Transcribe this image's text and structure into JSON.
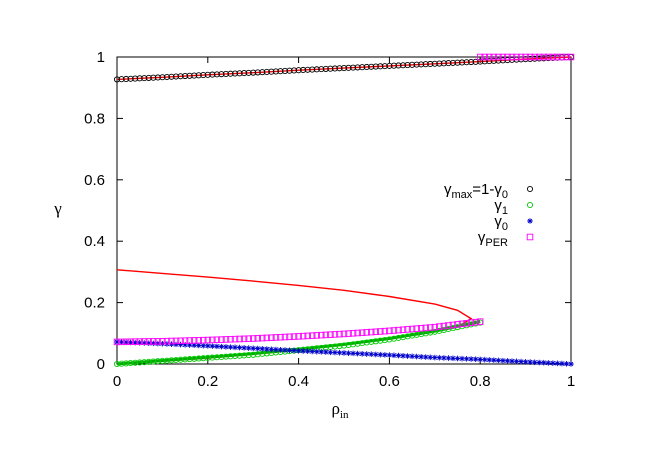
{
  "chart_data": {
    "type": "scatter",
    "title": "",
    "xlabel": "ρ",
    "xlabel_sub": "in",
    "ylabel": "γ",
    "xlim": [
      0,
      1
    ],
    "ylim": [
      0,
      1
    ],
    "xticks": [
      0,
      0.2,
      0.4,
      0.6,
      0.8,
      1
    ],
    "yticks": [
      0,
      0.2,
      0.4,
      0.6,
      0.8,
      1
    ],
    "xtick_labels": [
      "0",
      "0.2",
      "0.4",
      "0.6",
      "0.8",
      "1"
    ],
    "ytick_labels": [
      "0",
      "0.2",
      "0.4",
      "0.6",
      "0.8",
      "1"
    ],
    "grid": false,
    "legend_position": "right-middle",
    "legend": [
      {
        "main": "γ",
        "sub": "max",
        "rest": "=1-γ",
        "sub2": "0",
        "marker": "circle",
        "color": "#000000"
      },
      {
        "main": "γ",
        "sub": "1",
        "rest": "",
        "sub2": "",
        "marker": "circle",
        "color": "#00cc00"
      },
      {
        "main": "γ",
        "sub": "0",
        "rest": "",
        "sub2": "",
        "marker": "star",
        "color": "#0000cc"
      },
      {
        "main": "γ",
        "sub": "PER",
        "rest": "",
        "sub2": "",
        "marker": "square",
        "color": "#ff00ff"
      }
    ],
    "series": [
      {
        "name": "γmax=1-γ0",
        "kind": "markers",
        "marker": "circle",
        "color": "#000000",
        "x": [
          0,
          0.1,
          0.2,
          0.3,
          0.4,
          0.5,
          0.6,
          0.7,
          0.8,
          0.9,
          1.0
        ],
        "y": [
          0.927,
          0.934,
          0.942,
          0.949,
          0.957,
          0.964,
          0.971,
          0.978,
          0.985,
          0.993,
          1.0
        ]
      },
      {
        "name": "γ1",
        "kind": "markers",
        "marker": "circle",
        "color": "#00cc00",
        "x": [
          0,
          0.1,
          0.2,
          0.3,
          0.4,
          0.5,
          0.6,
          0.7,
          0.75,
          0.8
        ],
        "y": [
          0.0,
          0.01,
          0.02,
          0.03,
          0.045,
          0.06,
          0.08,
          0.105,
          0.12,
          0.135
        ]
      },
      {
        "name": "γ0",
        "kind": "markers",
        "marker": "star",
        "color": "#0000cc",
        "x": [
          0,
          0.1,
          0.2,
          0.3,
          0.4,
          0.5,
          0.6,
          0.7,
          0.8,
          0.9,
          1.0
        ],
        "y": [
          0.072,
          0.066,
          0.059,
          0.051,
          0.043,
          0.036,
          0.029,
          0.021,
          0.015,
          0.007,
          0.0
        ]
      },
      {
        "name": "γPER",
        "kind": "markers",
        "marker": "square",
        "color": "#ff00ff",
        "x": [
          0,
          0.1,
          0.2,
          0.3,
          0.4,
          0.5,
          0.6,
          0.7,
          0.8
        ],
        "y": [
          0.072,
          0.074,
          0.078,
          0.083,
          0.09,
          0.098,
          0.108,
          0.12,
          0.138
        ],
        "x_upper": [
          0.8,
          0.85,
          0.9,
          0.95,
          1.0
        ],
        "y_upper": [
          1.0,
          1.0,
          1.0,
          1.0,
          1.0
        ]
      },
      {
        "name": "red curve",
        "kind": "line",
        "color": "#ff0000",
        "x": [
          0,
          0.1,
          0.2,
          0.3,
          0.4,
          0.5,
          0.6,
          0.7,
          0.75,
          0.78,
          0.75,
          0.7,
          0.6,
          0.5,
          0.4,
          0.3,
          0.2,
          0.1,
          0.0
        ],
        "y": [
          0.307,
          0.295,
          0.283,
          0.27,
          0.256,
          0.24,
          0.22,
          0.195,
          0.175,
          0.148,
          0.121,
          0.106,
          0.082,
          0.063,
          0.046,
          0.032,
          0.019,
          0.009,
          0.0
        ]
      },
      {
        "name": "red upper",
        "kind": "line",
        "color": "#ff0000",
        "x": [
          0,
          0.1,
          0.2,
          0.3,
          0.4,
          0.5,
          0.6,
          0.7,
          0.8,
          0.9,
          1.0
        ],
        "y": [
          0.927,
          0.934,
          0.942,
          0.949,
          0.957,
          0.964,
          0.971,
          0.978,
          0.985,
          0.993,
          1.0
        ]
      },
      {
        "name": "green band",
        "kind": "line",
        "color": "#00aa00",
        "x": [
          0,
          0.1,
          0.2,
          0.3,
          0.4,
          0.5,
          0.6,
          0.7,
          0.8
        ],
        "y": [
          0.0,
          0.011,
          0.022,
          0.034,
          0.048,
          0.064,
          0.083,
          0.107,
          0.138
        ]
      }
    ]
  }
}
